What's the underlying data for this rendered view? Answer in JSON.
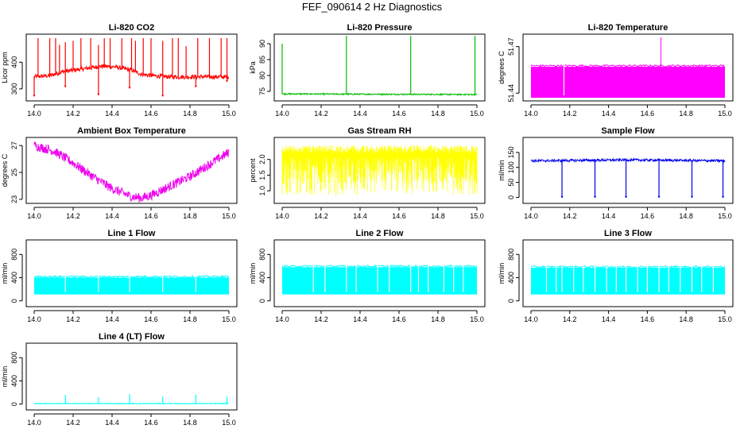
{
  "title": "FEF_090614  2 Hz Diagnostics",
  "chart_data": [
    {
      "id": "co2",
      "type": "line",
      "title": "Li-820 CO2",
      "ylabel": "Licor ppm",
      "color": "#ff0000",
      "xlim": [
        14.0,
        15.0
      ],
      "ylim": [
        255,
        505
      ],
      "x_ticks": [
        14.0,
        14.2,
        14.4,
        14.6,
        14.8,
        15.0
      ],
      "x_tick_labels": [
        "14.0",
        "14.2",
        "14.4",
        "14.6",
        "14.8",
        "15.0"
      ],
      "y_ticks": [
        300,
        400
      ],
      "y_tick_labels": [
        "300",
        "400"
      ],
      "baseline": [
        [
          14.0,
          345
        ],
        [
          14.08,
          350
        ],
        [
          14.15,
          365
        ],
        [
          14.25,
          375
        ],
        [
          14.35,
          385
        ],
        [
          14.42,
          382
        ],
        [
          14.5,
          370
        ],
        [
          14.55,
          355
        ],
        [
          14.6,
          350
        ],
        [
          14.7,
          345
        ],
        [
          15.0,
          345
        ]
      ],
      "noise": 8,
      "spikes": [
        [
          14.02,
          490
        ],
        [
          14.08,
          490
        ],
        [
          14.11,
          490
        ],
        [
          14.13,
          465
        ],
        [
          14.16,
          475
        ],
        [
          14.2,
          480
        ],
        [
          14.24,
          490
        ],
        [
          14.29,
          490
        ],
        [
          14.33,
          465
        ],
        [
          14.36,
          490
        ],
        [
          14.39,
          490
        ],
        [
          14.45,
          490
        ],
        [
          14.5,
          490
        ],
        [
          14.52,
          480
        ],
        [
          14.56,
          490
        ],
        [
          14.6,
          490
        ],
        [
          14.66,
          480
        ],
        [
          14.71,
          490
        ],
        [
          14.74,
          490
        ],
        [
          14.78,
          460
        ],
        [
          14.84,
          490
        ],
        [
          14.9,
          490
        ],
        [
          14.96,
          490
        ],
        [
          14.99,
          490
        ]
      ],
      "dips": [
        [
          14.0,
          275
        ],
        [
          14.16,
          310
        ],
        [
          14.33,
          280
        ],
        [
          14.49,
          305
        ],
        [
          14.66,
          275
        ],
        [
          14.83,
          310
        ],
        [
          14.99,
          330
        ]
      ]
    },
    {
      "id": "pressure",
      "type": "line",
      "title": "Li-820 Pressure",
      "ylabel": "kPa",
      "color": "#00bb00",
      "xlim": [
        14.0,
        15.0
      ],
      "ylim": [
        72,
        93
      ],
      "x_ticks": [
        14.0,
        14.2,
        14.4,
        14.6,
        14.8,
        15.0
      ],
      "x_tick_labels": [
        "14.0",
        "14.2",
        "14.4",
        "14.6",
        "14.8",
        "15.0"
      ],
      "y_ticks": [
        75,
        80,
        85,
        90
      ],
      "y_tick_labels": [
        "75",
        "80",
        "85",
        "90"
      ],
      "baseline": [
        [
          14.0,
          74.2
        ],
        [
          15.0,
          74.0
        ]
      ],
      "noise": 0.2,
      "spikes": [
        [
          14.0,
          90
        ],
        [
          14.33,
          92.5
        ],
        [
          14.66,
          92.5
        ],
        [
          14.99,
          92.5
        ]
      ],
      "dips": []
    },
    {
      "id": "temperature",
      "type": "area",
      "title": "Li-820 Temperature",
      "ylabel": "degrees C",
      "color": "#ff00ff",
      "xlim": [
        14.0,
        15.0
      ],
      "ylim": [
        51.435,
        51.478
      ],
      "x_ticks": [
        14.0,
        14.2,
        14.4,
        14.6,
        14.8,
        15.0
      ],
      "x_tick_labels": [
        "14.0",
        "14.2",
        "14.4",
        "14.6",
        "14.8",
        "15.0"
      ],
      "y_ticks": [
        51.44,
        51.47
      ],
      "y_tick_labels": [
        "51.44",
        "51.47"
      ],
      "band": [
        51.437,
        51.457
      ],
      "gaps": [
        14.17
      ],
      "spikes": [
        [
          14.67,
          51.476
        ]
      ]
    },
    {
      "id": "box-temp",
      "type": "line",
      "title": "Ambient Box Temperature",
      "ylabel": "degrees C",
      "color": "#ee00ee",
      "xlim": [
        14.0,
        15.0
      ],
      "ylim": [
        22.7,
        27.6
      ],
      "x_ticks": [
        14.0,
        14.2,
        14.4,
        14.6,
        14.8,
        15.0
      ],
      "x_tick_labels": [
        "14.0",
        "14.2",
        "14.4",
        "14.6",
        "14.8",
        "15.0"
      ],
      "y_ticks": [
        23,
        25,
        27
      ],
      "y_tick_labels": [
        "23",
        "25",
        "27"
      ],
      "baseline": [
        [
          14.0,
          27.0
        ],
        [
          14.1,
          26.6
        ],
        [
          14.2,
          25.7
        ],
        [
          14.3,
          24.7
        ],
        [
          14.4,
          23.8
        ],
        [
          14.5,
          23.2
        ],
        [
          14.55,
          23.1
        ],
        [
          14.6,
          23.3
        ],
        [
          14.7,
          24.0
        ],
        [
          14.8,
          24.7
        ],
        [
          14.9,
          25.6
        ],
        [
          15.0,
          26.5
        ]
      ],
      "noise": 0.35,
      "spikes": [],
      "dips": []
    },
    {
      "id": "gas-rh",
      "type": "line",
      "title": "Gas Stream RH",
      "ylabel": "percent",
      "color": "#ffff00",
      "xlim": [
        14.0,
        15.0
      ],
      "ylim": [
        0.6,
        2.7
      ],
      "x_ticks": [
        14.0,
        14.2,
        14.4,
        14.6,
        14.8,
        15.0
      ],
      "x_tick_labels": [
        "14.0",
        "14.2",
        "14.4",
        "14.6",
        "14.8",
        "15.0"
      ],
      "y_ticks": [
        1.0,
        1.5,
        2.0
      ],
      "y_tick_labels": [
        "1.0",
        "1.5",
        "2.0"
      ],
      "band": [
        0.85,
        2.45
      ],
      "dense": true
    },
    {
      "id": "sample-flow",
      "type": "line",
      "title": "Sample Flow",
      "ylabel": "ml/min",
      "color": "#0000ee",
      "xlim": [
        14.0,
        15.0
      ],
      "ylim": [
        -20,
        200
      ],
      "x_ticks": [
        14.0,
        14.2,
        14.4,
        14.6,
        14.8,
        15.0
      ],
      "x_tick_labels": [
        "14.0",
        "14.2",
        "14.4",
        "14.6",
        "14.8",
        "15.0"
      ],
      "y_ticks": [
        0,
        50,
        100,
        150
      ],
      "y_tick_labels": [
        "0",
        "50",
        "100",
        "150"
      ],
      "baseline": [
        [
          14.0,
          122
        ],
        [
          14.5,
          125
        ],
        [
          15.0,
          122
        ]
      ],
      "noise": 4,
      "spikes": [],
      "dips": [
        [
          14.16,
          2
        ],
        [
          14.33,
          2
        ],
        [
          14.49,
          2
        ],
        [
          14.66,
          2
        ],
        [
          14.83,
          2
        ],
        [
          14.99,
          2
        ]
      ]
    },
    {
      "id": "line1",
      "type": "area",
      "title": "Line 1 Flow",
      "ylabel": "ml/min",
      "color": "#00ffff",
      "xlim": [
        14.0,
        15.0
      ],
      "ylim": [
        -100,
        1050
      ],
      "x_ticks": [
        14.0,
        14.2,
        14.4,
        14.6,
        14.8,
        15.0
      ],
      "x_tick_labels": [
        "14.0",
        "14.2",
        "14.4",
        "14.6",
        "14.8",
        "15.0"
      ],
      "y_ticks": [
        0,
        400,
        800
      ],
      "y_tick_labels": [
        "0",
        "400",
        "800"
      ],
      "band": [
        110,
        400
      ],
      "gaps": [
        14.16,
        14.33,
        14.49,
        14.66,
        14.83
      ]
    },
    {
      "id": "line2",
      "type": "area",
      "title": "Line 2 Flow",
      "ylabel": "ml/min",
      "color": "#00ffff",
      "xlim": [
        14.0,
        15.0
      ],
      "ylim": [
        -100,
        1050
      ],
      "x_ticks": [
        14.0,
        14.2,
        14.4,
        14.6,
        14.8,
        15.0
      ],
      "x_tick_labels": [
        "14.0",
        "14.2",
        "14.4",
        "14.6",
        "14.8",
        "15.0"
      ],
      "y_ticks": [
        0,
        400,
        800
      ],
      "y_tick_labels": [
        "0",
        "400",
        "800"
      ],
      "band": [
        110,
        580
      ],
      "gaps": [
        14.16,
        14.22,
        14.33,
        14.38,
        14.49,
        14.55,
        14.66,
        14.7,
        14.75,
        14.83,
        14.88,
        14.93
      ]
    },
    {
      "id": "line3",
      "type": "area",
      "title": "Line 3 Flow",
      "ylabel": "ml/min",
      "color": "#00ffff",
      "xlim": [
        14.0,
        15.0
      ],
      "ylim": [
        -100,
        1050
      ],
      "x_ticks": [
        14.0,
        14.2,
        14.4,
        14.6,
        14.8,
        15.0
      ],
      "x_tick_labels": [
        "14.0",
        "14.2",
        "14.4",
        "14.6",
        "14.8",
        "15.0"
      ],
      "y_ticks": [
        0,
        400,
        800
      ],
      "y_tick_labels": [
        "0",
        "400",
        "800"
      ],
      "band": [
        110,
        570
      ],
      "gaps": [
        14.08,
        14.13,
        14.16,
        14.22,
        14.27,
        14.33,
        14.39,
        14.44,
        14.49,
        14.55,
        14.6,
        14.66,
        14.71,
        14.77,
        14.83,
        14.88,
        14.94
      ]
    },
    {
      "id": "line4",
      "type": "line",
      "title": "Line 4 (LT) Flow",
      "ylabel": "ml/min",
      "color": "#00ffff",
      "xlim": [
        14.0,
        15.0
      ],
      "ylim": [
        -100,
        1050
      ],
      "x_ticks": [
        14.0,
        14.2,
        14.4,
        14.6,
        14.8,
        15.0
      ],
      "x_tick_labels": [
        "14.0",
        "14.2",
        "14.4",
        "14.6",
        "14.8",
        "15.0"
      ],
      "y_ticks": [
        0,
        400,
        800
      ],
      "y_tick_labels": [
        "0",
        "400",
        "800"
      ],
      "baseline": [
        [
          14.0,
          10
        ],
        [
          15.0,
          10
        ]
      ],
      "noise": 6,
      "spikes": [
        [
          14.16,
          160
        ],
        [
          14.33,
          120
        ],
        [
          14.49,
          170
        ],
        [
          14.66,
          130
        ],
        [
          14.83,
          160
        ],
        [
          14.99,
          130
        ]
      ],
      "dips": []
    }
  ]
}
